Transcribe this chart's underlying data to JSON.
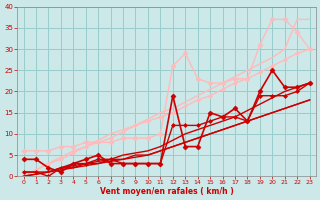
{
  "bg_color": "#cce8e8",
  "grid_color": "#99cccc",
  "xlabel": "Vent moyen/en rafales ( km/h )",
  "xlabel_color": "#cc0000",
  "tick_color": "#cc0000",
  "xlim": [
    -0.5,
    23.5
  ],
  "ylim": [
    0,
    40
  ],
  "xticks": [
    0,
    1,
    2,
    3,
    4,
    5,
    6,
    7,
    8,
    9,
    10,
    11,
    12,
    13,
    14,
    15,
    16,
    17,
    18,
    19,
    20,
    21,
    22,
    23
  ],
  "yticks": [
    0,
    5,
    10,
    15,
    20,
    25,
    30,
    35,
    40
  ],
  "series": [
    {
      "x": [
        0,
        1,
        2,
        3,
        4,
        5,
        6,
        7,
        8,
        9,
        10,
        11,
        12,
        13,
        14,
        15,
        16,
        17,
        18,
        19,
        20,
        21,
        22,
        23
      ],
      "y": [
        0,
        1.5,
        3,
        4,
        5.5,
        7,
        8,
        9,
        10.5,
        12,
        13,
        14,
        15,
        16.5,
        18,
        19,
        20.5,
        22,
        23,
        24.5,
        26,
        27.5,
        29,
        30
      ],
      "color": "#ffbbbb",
      "lw": 1.0,
      "marker": "D",
      "ms": 2.0
    },
    {
      "x": [
        0,
        1,
        2,
        3,
        4,
        5,
        6,
        7,
        8,
        9,
        10,
        11,
        12,
        13,
        14,
        15,
        16,
        17,
        18,
        19,
        20,
        21,
        22,
        23
      ],
      "y": [
        0,
        1.5,
        3,
        4.5,
        6,
        7,
        8.5,
        10,
        11,
        12,
        13.5,
        15,
        16,
        17.5,
        19,
        20.5,
        22,
        23.5,
        25,
        26.5,
        28,
        30,
        37,
        37
      ],
      "color": "#ffbbbb",
      "lw": 1.0,
      "marker": null,
      "ms": 0
    },
    {
      "x": [
        0,
        1,
        2,
        3,
        4,
        5,
        6,
        7,
        8,
        9,
        10,
        11,
        12,
        13,
        14,
        15,
        16,
        17,
        18,
        19,
        20,
        21,
        22,
        23
      ],
      "y": [
        6,
        6,
        6,
        7,
        7,
        8,
        8,
        8,
        9,
        9,
        9,
        10,
        26,
        29,
        23,
        22,
        22,
        23,
        23,
        31,
        37,
        37,
        34,
        30
      ],
      "color": "#ffbbbb",
      "lw": 1.0,
      "marker": "D",
      "ms": 2.5
    },
    {
      "x": [
        0,
        1,
        2,
        3,
        4,
        5,
        6,
        7,
        8,
        9,
        10,
        11,
        12,
        13,
        14,
        15,
        16,
        17,
        18,
        19,
        20,
        21,
        22,
        23
      ],
      "y": [
        0,
        0.5,
        1,
        1.5,
        2,
        2.5,
        3,
        3.5,
        4,
        4.5,
        5,
        6,
        7,
        8,
        9,
        10,
        11,
        12,
        13,
        14,
        15,
        16,
        17,
        18
      ],
      "color": "#cc0000",
      "lw": 1.0,
      "marker": null,
      "ms": 0
    },
    {
      "x": [
        0,
        1,
        2,
        3,
        4,
        5,
        6,
        7,
        8,
        9,
        10,
        11,
        12,
        13,
        14,
        15,
        16,
        17,
        18,
        19,
        20,
        21,
        22,
        23
      ],
      "y": [
        0,
        0.5,
        1,
        2,
        2.5,
        3,
        3.5,
        4,
        5,
        5.5,
        6,
        7,
        8.5,
        10,
        11,
        12,
        13,
        14,
        15.5,
        17,
        18.5,
        20,
        21,
        22
      ],
      "color": "#cc0000",
      "lw": 1.0,
      "marker": null,
      "ms": 0
    },
    {
      "x": [
        0,
        1,
        2,
        3,
        4,
        5,
        6,
        7,
        8,
        9,
        10,
        11,
        12,
        13,
        14,
        15,
        16,
        17,
        18,
        19,
        20,
        21,
        22,
        23
      ],
      "y": [
        4,
        4,
        2,
        1,
        3,
        4,
        5,
        3,
        3,
        3,
        3,
        3,
        19,
        7,
        7,
        15,
        14,
        16,
        13,
        20,
        25,
        21,
        21,
        22
      ],
      "color": "#cc0000",
      "lw": 1.2,
      "marker": "D",
      "ms": 2.5
    },
    {
      "x": [
        0,
        1,
        2,
        3,
        4,
        5,
        6,
        7,
        8,
        9,
        10,
        11,
        12,
        13,
        14,
        15,
        16,
        17,
        18,
        19,
        20,
        21,
        22,
        23
      ],
      "y": [
        1,
        1,
        0,
        2,
        3,
        3,
        4,
        4,
        3,
        3,
        3,
        3,
        12,
        12,
        12,
        13,
        14,
        14,
        13,
        19,
        19,
        19,
        20,
        22
      ],
      "color": "#cc0000",
      "lw": 1.0,
      "marker": "D",
      "ms": 2.0
    },
    {
      "x": [
        0,
        1,
        2,
        3,
        4,
        5,
        6,
        7,
        8,
        9,
        10,
        11,
        12,
        13,
        14,
        15,
        16,
        17,
        18,
        19,
        20,
        21,
        22,
        23
      ],
      "y": [
        1,
        1,
        1,
        2,
        2,
        3,
        3,
        4,
        4,
        5,
        5,
        6,
        7,
        8,
        9,
        10,
        11,
        12,
        13,
        14,
        15,
        16,
        17,
        18
      ],
      "color": "#cc0000",
      "lw": 1.0,
      "marker": null,
      "ms": 0
    }
  ]
}
